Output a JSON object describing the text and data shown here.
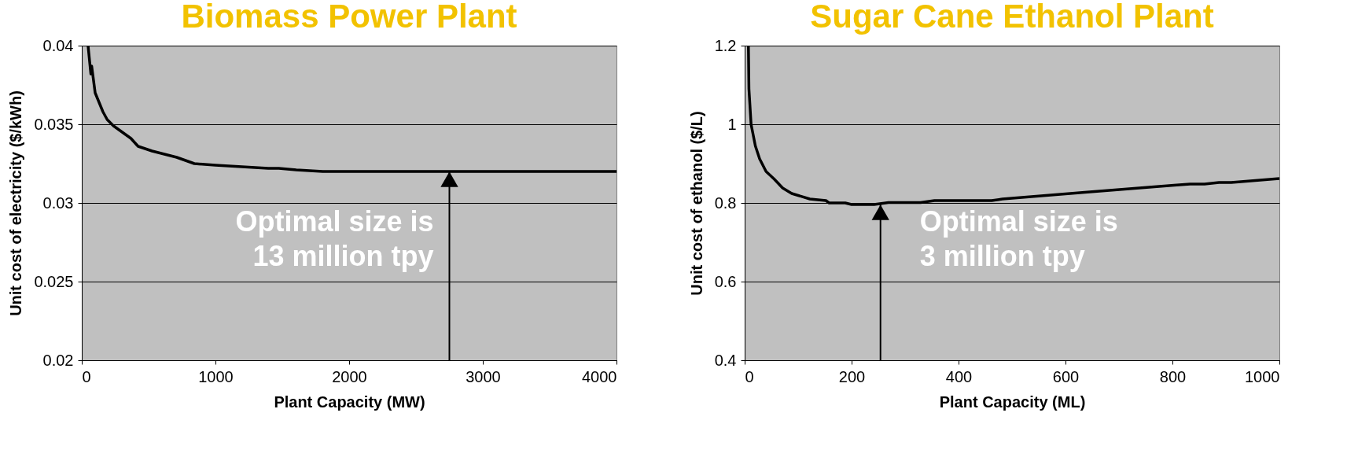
{
  "chart_data": [
    {
      "type": "line",
      "title": "Biomass Power Plant",
      "xlabel": "Plant Capacity (MW)",
      "ylabel": "Unit cost of electricity ($/kWh)",
      "x": [
        47,
        68,
        74,
        100,
        158,
        190,
        237,
        368,
        421,
        526,
        710,
        842,
        1000,
        1395,
        1474,
        1605,
        1803,
        4000
      ],
      "series": [
        {
          "color": "#000000",
          "values": [
            0.04,
            0.0382,
            0.0387,
            0.037,
            0.0358,
            0.0353,
            0.0349,
            0.0341,
            0.0336,
            0.0333,
            0.0329,
            0.0325,
            0.0324,
            0.0322,
            0.0322,
            0.0321,
            0.032,
            0.032
          ]
        }
      ],
      "xlim": [
        0,
        4000
      ],
      "xticks": [
        0,
        1000,
        2000,
        3000,
        4000
      ],
      "ylim": [
        0.02,
        0.04
      ],
      "yticks": [
        0.02,
        0.025,
        0.03,
        0.035,
        0.04
      ],
      "grid": "y",
      "annotations": [
        {
          "text": "Optimal size is\n13 million tpy",
          "x": 2750,
          "y": 0.032
        }
      ]
    },
    {
      "type": "line",
      "title": "Sugar Cane Ethanol Plant",
      "xlabel": "Plant Capacity (ML)",
      "ylabel": "Unit cost of ethanol ($/L)",
      "x": [
        7,
        8,
        12,
        20,
        28,
        40,
        55,
        71,
        88,
        122,
        152,
        158,
        188,
        200,
        242,
        269,
        329,
        355,
        462,
        482,
        636,
        803,
        833,
        860,
        887,
        910,
        1000
      ],
      "series": [
        {
          "color": "#000000",
          "values": [
            1.2,
            1.09,
            1.0,
            0.945,
            0.912,
            0.88,
            0.861,
            0.838,
            0.824,
            0.81,
            0.806,
            0.8,
            0.8,
            0.796,
            0.796,
            0.801,
            0.801,
            0.806,
            0.806,
            0.81,
            0.827,
            0.845,
            0.848,
            0.848,
            0.852,
            0.852,
            0.862
          ]
        }
      ],
      "xlim": [
        0,
        1000
      ],
      "xticks": [
        0,
        200,
        400,
        600,
        800,
        1000
      ],
      "ylim": [
        0.4,
        1.2
      ],
      "yticks": [
        0.4,
        0.6,
        0.8,
        1,
        1.2
      ],
      "grid": "y",
      "annotations": [
        {
          "text": "Optimal size is\n3 million tpy",
          "x": 254,
          "y": 0.796
        }
      ]
    }
  ]
}
